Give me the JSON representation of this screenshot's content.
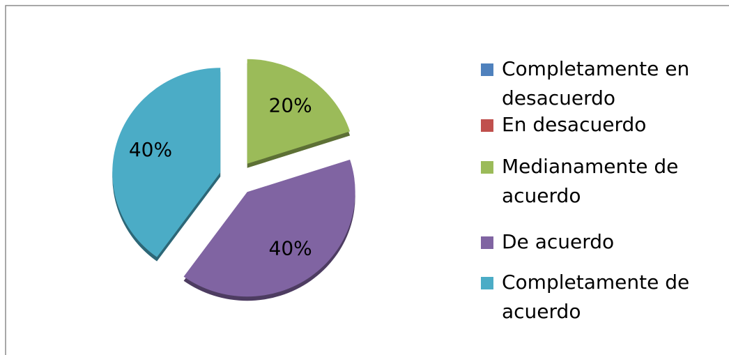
{
  "chart_data": {
    "type": "pie",
    "categories": [
      "Completamente en desacuerdo",
      "En desacuerdo",
      "Medianamente de acuerdo",
      "De acuerdo",
      "Completamente de acuerdo"
    ],
    "values": [
      0,
      0,
      20,
      40,
      40
    ],
    "value_labels": [
      null,
      null,
      "20%",
      "40%",
      "40%"
    ],
    "colors": [
      "#4f81bd",
      "#c0504d",
      "#9bbb59",
      "#8064a2",
      "#4bacc6"
    ],
    "legend": "right"
  }
}
